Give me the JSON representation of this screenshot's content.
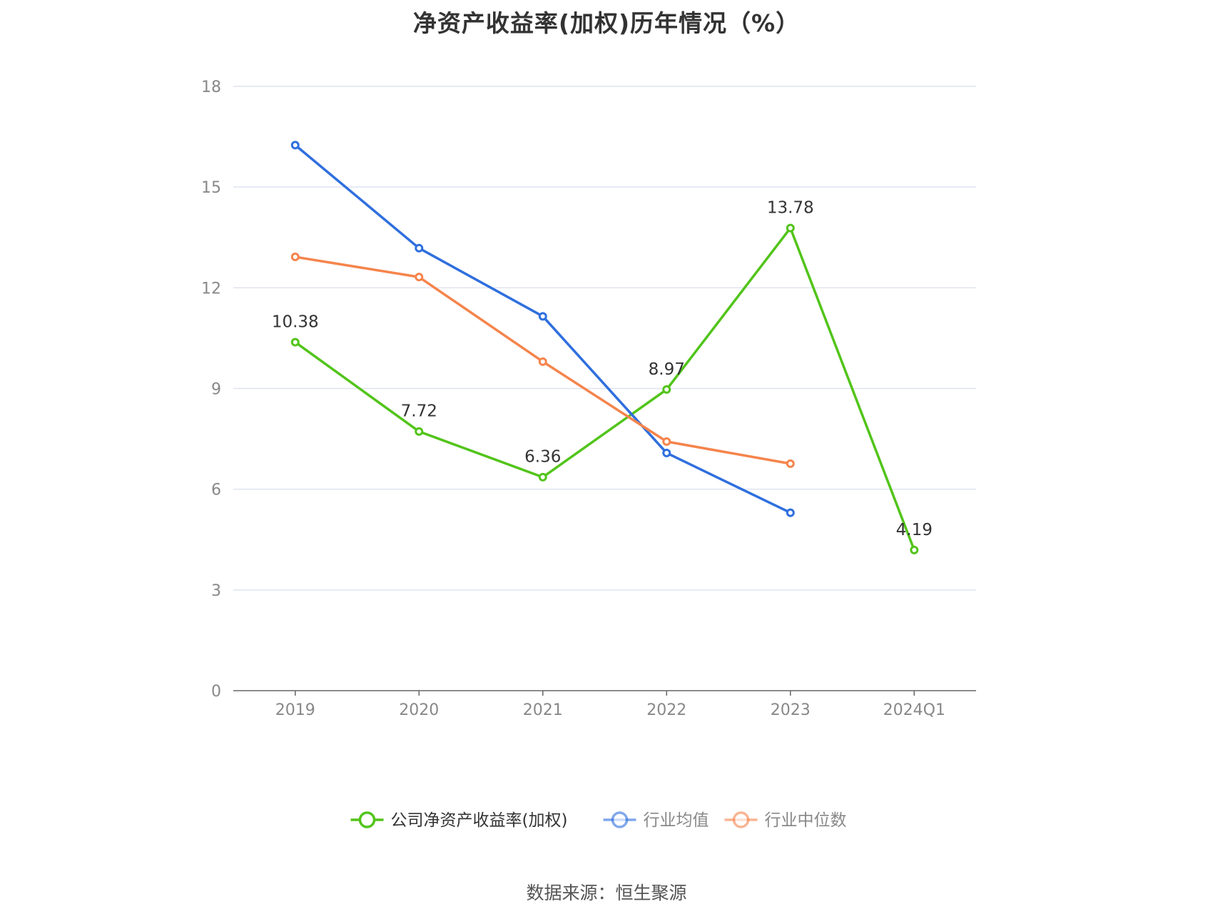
{
  "chart_data": {
    "type": "line",
    "title": "净资产收益率(加权)历年情况（%）",
    "categories": [
      "2019",
      "2020",
      "2021",
      "2022",
      "2023",
      "2024Q1"
    ],
    "ylim": [
      0,
      18
    ],
    "yticks": [
      0,
      3,
      6,
      9,
      12,
      15,
      18
    ],
    "grid": true,
    "legend_position": "bottom",
    "series": [
      {
        "name": "公司净资产收益率(加权)",
        "color": "#52c41a",
        "values": [
          10.38,
          7.72,
          6.36,
          8.97,
          13.78,
          4.19
        ],
        "labels": [
          "10.38",
          "7.72",
          "6.36",
          "8.97",
          "13.78",
          "4.19"
        ],
        "show_labels": true
      },
      {
        "name": "行业均值",
        "color": "#2f6fde",
        "values": [
          16.25,
          13.18,
          11.15,
          7.08,
          5.3,
          null
        ],
        "show_labels": false
      },
      {
        "name": "行业中位数",
        "color": "#f5844c",
        "values": [
          12.92,
          12.32,
          9.8,
          7.42,
          6.76,
          null
        ],
        "show_labels": false
      }
    ]
  },
  "source": "数据来源：恒生聚源"
}
